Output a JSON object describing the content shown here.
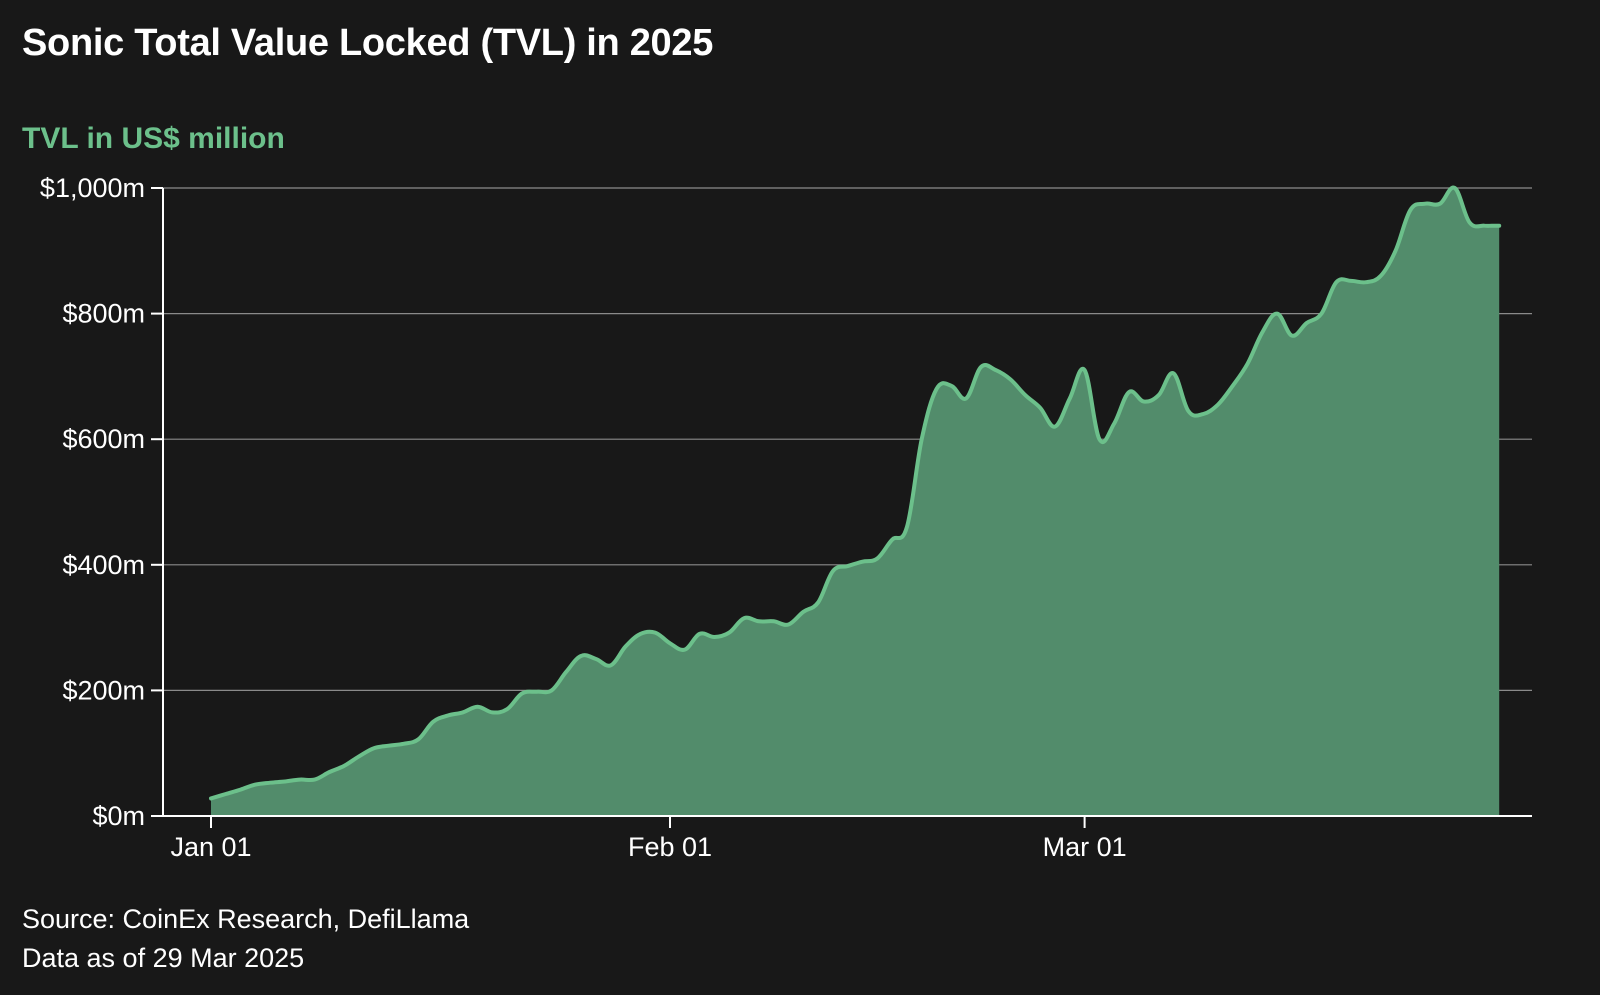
{
  "chart_data": {
    "type": "area",
    "title": "Sonic Total Value Locked (TVL) in 2025",
    "ylabel": "TVL in US$ million",
    "source": "Source: CoinEx Research, DefiLlama",
    "as_of": "Data as of 29 Mar 2025",
    "ylim": [
      0,
      1000
    ],
    "yticks": [
      0,
      200,
      400,
      600,
      800,
      1000
    ],
    "ytick_labels": [
      "$0m",
      "$200m",
      "$400m",
      "$600m",
      "$800m",
      "$1,000m"
    ],
    "xlim": [
      0,
      88
    ],
    "xticks": [
      {
        "day": 0,
        "label": "Jan 01"
      },
      {
        "day": 31,
        "label": "Feb 01"
      },
      {
        "day": 59,
        "label": "Mar 01"
      }
    ],
    "grid": "horizontal",
    "colors": {
      "line": "#6cc08b",
      "fill": "#528c6b",
      "background": "#181818",
      "grid": "#8a8a8a",
      "axis": "#ffffff"
    },
    "series": [
      {
        "x": [
          "2025-01-01",
          "2025-01-02",
          "2025-01-03",
          "2025-01-04",
          "2025-01-05",
          "2025-01-06",
          "2025-01-07",
          "2025-01-08",
          "2025-01-09",
          "2025-01-10",
          "2025-01-11",
          "2025-01-12",
          "2025-01-13",
          "2025-01-14",
          "2025-01-15",
          "2025-01-16",
          "2025-01-17",
          "2025-01-18",
          "2025-01-19",
          "2025-01-20",
          "2025-01-21",
          "2025-01-22",
          "2025-01-23",
          "2025-01-24",
          "2025-01-25",
          "2025-01-26",
          "2025-01-27",
          "2025-01-28",
          "2025-01-29",
          "2025-01-30",
          "2025-01-31",
          "2025-02-01",
          "2025-02-02",
          "2025-02-03",
          "2025-02-04",
          "2025-02-05",
          "2025-02-06",
          "2025-02-07",
          "2025-02-08",
          "2025-02-09",
          "2025-02-10",
          "2025-02-11",
          "2025-02-12",
          "2025-02-13",
          "2025-02-14",
          "2025-02-15",
          "2025-02-16",
          "2025-02-17",
          "2025-02-18",
          "2025-02-19",
          "2025-02-20",
          "2025-02-21",
          "2025-02-22",
          "2025-02-23",
          "2025-02-24",
          "2025-02-25",
          "2025-02-26",
          "2025-02-27",
          "2025-02-28",
          "2025-03-01",
          "2025-03-02",
          "2025-03-03",
          "2025-03-04",
          "2025-03-05",
          "2025-03-06",
          "2025-03-07",
          "2025-03-08",
          "2025-03-09",
          "2025-03-10",
          "2025-03-11",
          "2025-03-12",
          "2025-03-13",
          "2025-03-14",
          "2025-03-15",
          "2025-03-16",
          "2025-03-17",
          "2025-03-18",
          "2025-03-19",
          "2025-03-20",
          "2025-03-21",
          "2025-03-22",
          "2025-03-23",
          "2025-03-24",
          "2025-03-25",
          "2025-03-26",
          "2025-03-27",
          "2025-03-28",
          "2025-03-28",
          "2025-03-29"
        ],
        "values": [
          28,
          35,
          42,
          50,
          53,
          55,
          58,
          58,
          70,
          80,
          95,
          108,
          112,
          115,
          122,
          150,
          160,
          165,
          174,
          165,
          170,
          195,
          198,
          200,
          230,
          255,
          250,
          240,
          270,
          290,
          292,
          275,
          265,
          290,
          285,
          292,
          315,
          310,
          310,
          305,
          325,
          340,
          390,
          398,
          405,
          410,
          440,
          460,
          600,
          680,
          685,
          665,
          715,
          710,
          695,
          670,
          650,
          620,
          665,
          710,
          600,
          625,
          675,
          660,
          670,
          705,
          645,
          640,
          655,
          685,
          720,
          770,
          800,
          765,
          785,
          800,
          850,
          852,
          850,
          860,
          900,
          965,
          975,
          975,
          1000,
          945,
          940,
          940,
          940
        ]
      }
    ]
  }
}
